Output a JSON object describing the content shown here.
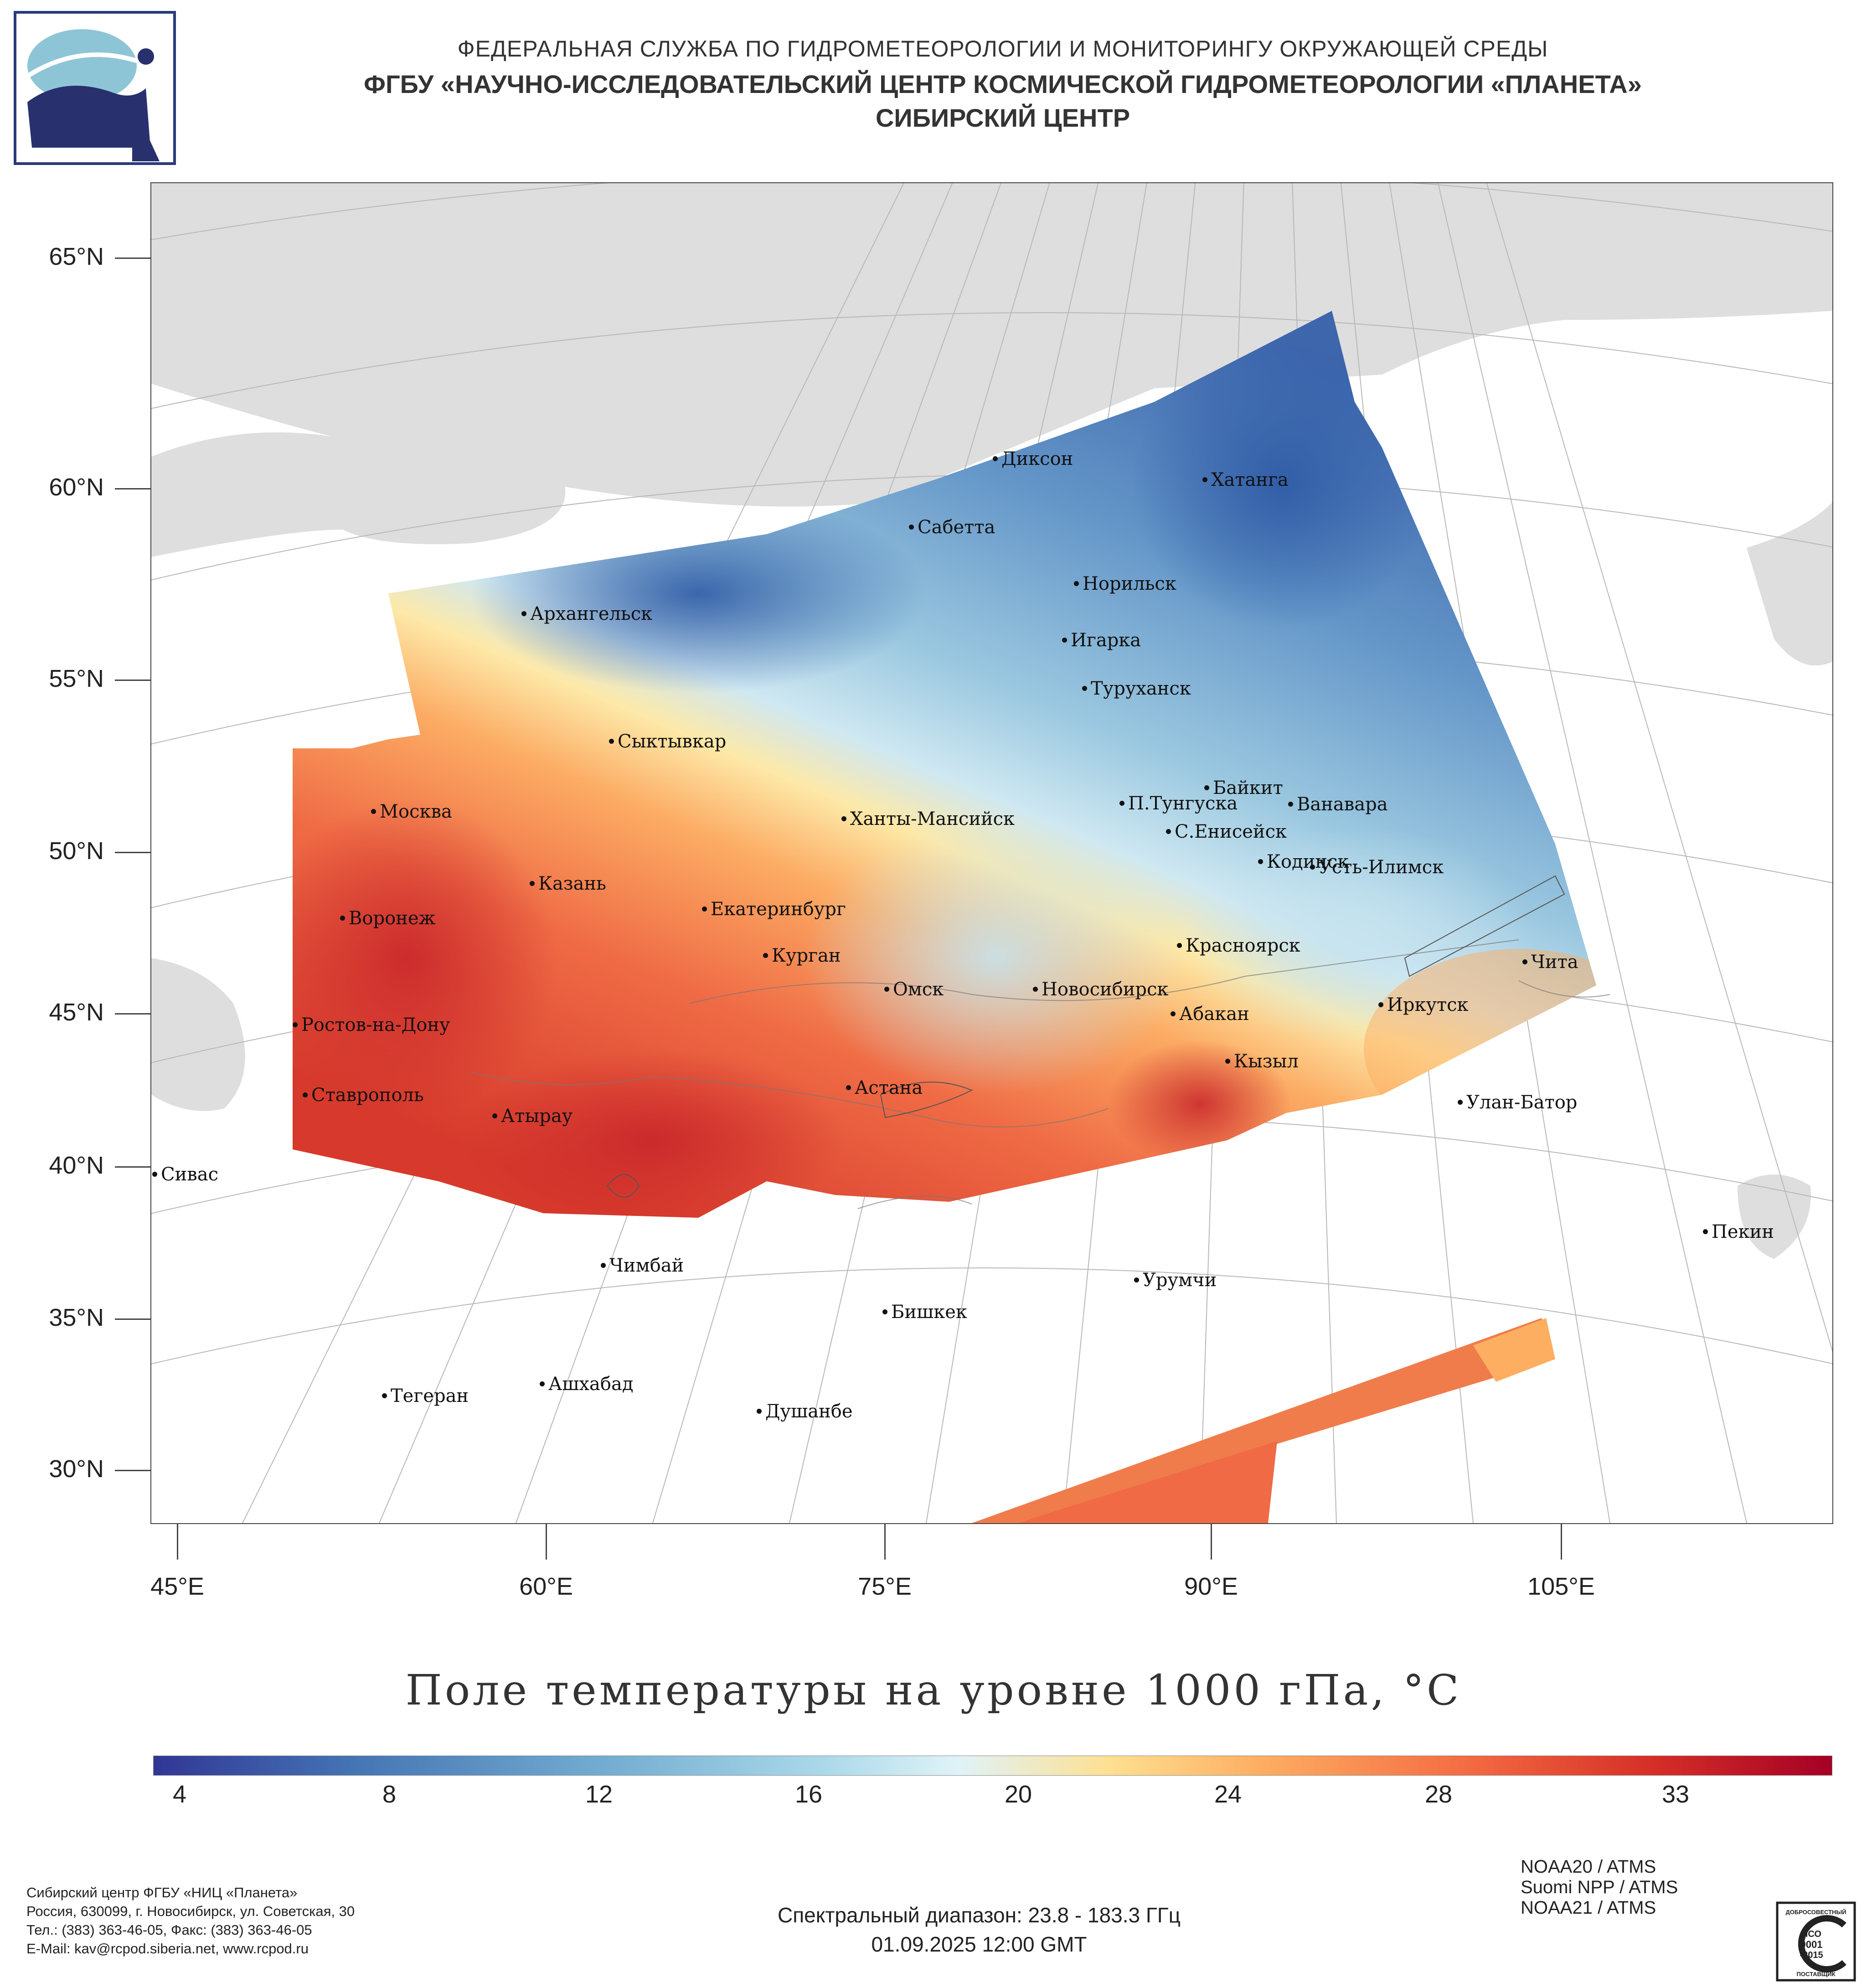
{
  "header": {
    "line1": "ФЕДЕРАЛЬНАЯ СЛУЖБА ПО ГИДРОМЕТЕОРОЛОГИИ И МОНИТОРИНГУ ОКРУЖАЮЩЕЙ СРЕДЫ",
    "line2": "ФГБУ «НАУЧНО-ИССЛЕДОВАТЕЛЬСКИЙ ЦЕНТР КОСМИЧЕСКОЙ ГИДРОМЕТЕОРОЛОГИИ «ПЛАНЕТА»",
    "line3": "СИБИРСКИЙ ЦЕНТР"
  },
  "axes": {
    "lat_labels": [
      "65°N",
      "60°N",
      "55°N",
      "50°N",
      "45°N",
      "40°N",
      "35°N",
      "30°N"
    ],
    "lon_labels": [
      "45°E",
      "60°E",
      "75°E",
      "90°E",
      "105°E"
    ]
  },
  "cities": [
    "Диксон",
    "Хатанга",
    "Сабетта",
    "Норильск",
    "Архангельск",
    "Игарка",
    "Туруханск",
    "Сыктывкар",
    "Байкит",
    "Москва",
    "П.Тунгуска",
    "Ванавара",
    "Ханты-Мансийск",
    "С.Енисейск",
    "Кодинск",
    "Усть-Илимск",
    "Казань",
    "Екатеринбург",
    "Воронеж",
    "Красноярск",
    "Курган",
    "Чита",
    "Омск",
    "Новосибирск",
    "Иркутск",
    "Абакан",
    "Ростов-на-Дону",
    "Кызыл",
    "Астана",
    "Ставрополь",
    "Улан-Батор",
    "Атырау",
    "Сивас",
    "Пекин",
    "Чимбай",
    "Урумчи",
    "Бишкек",
    "Ашхабад",
    "Тегеран",
    "Душанбе"
  ],
  "map_title": "Поле температуры на уровне 1000 гПа, °C",
  "colorbar": {
    "tick_labels": [
      "4",
      "8",
      "12",
      "16",
      "20",
      "24",
      "28",
      "33"
    ],
    "colors": [
      "#313695",
      "#4575b4",
      "#74add1",
      "#abd9e9",
      "#e0f3f8",
      "#fee090",
      "#fdae61",
      "#f46d43",
      "#d73027",
      "#a50026"
    ]
  },
  "footer": {
    "org_lines": [
      "Сибирский центр ФГБУ «НИЦ «Планета»",
      "Россия, 630099, г. Новосибирск, ул. Советская, 30",
      "Тел.: (383) 363-46-05, Факс: (383) 363-46-05",
      "E-Mail: kav@rcpod.siberia.net, www.rcpod.ru"
    ],
    "spectral": "Спектральный диапазон: 23.8 - 183.3 ГГц",
    "datetime": "01.09.2025 12:00 GMT",
    "instruments": [
      "NOAA20 / ATMS",
      "Suomi NPP / ATMS",
      "NOAA21 / ATMS"
    ],
    "iso_badge_text": [
      "ДОБРОСОВЕСТНЫЙ",
      "ИСО",
      "9001",
      "-2015",
      "ПОСТАВЩИК"
    ]
  }
}
